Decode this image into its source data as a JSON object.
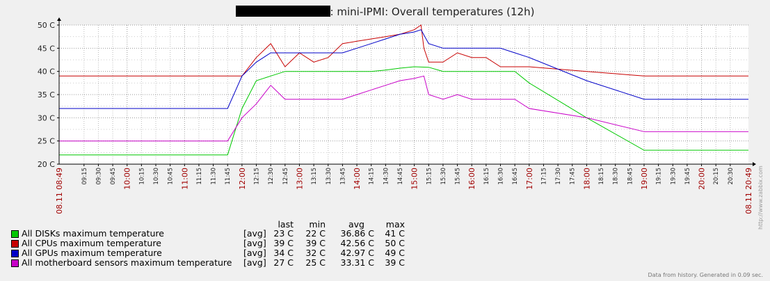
{
  "header": {
    "title_suffix": ": mini-IPMI: Overall temperatures (12h)"
  },
  "chart_data": {
    "type": "line",
    "title": ": mini-IPMI: Overall temperatures (12h)",
    "ylim": [
      20,
      50
    ],
    "yticks": [
      "20 C",
      "25 C",
      "30 C",
      "35 C",
      "40 C",
      "45 C",
      "50 C"
    ],
    "x_start_label": "08.11 08:49",
    "x_end_label": "08.11 20:49",
    "x_start_min": 529,
    "x_end_min": 1249,
    "xticks": [
      "09:15",
      "09:30",
      "09:45",
      "10:00",
      "10:15",
      "10:30",
      "10:45",
      "11:00",
      "11:15",
      "11:30",
      "11:45",
      "12:00",
      "12:15",
      "12:30",
      "12:45",
      "13:00",
      "13:15",
      "13:30",
      "13:45",
      "14:00",
      "14:15",
      "14:30",
      "14:45",
      "15:00",
      "15:15",
      "15:30",
      "15:45",
      "16:00",
      "16:15",
      "16:30",
      "16:45",
      "17:00",
      "17:15",
      "17:30",
      "17:45",
      "18:00",
      "18:15",
      "18:30",
      "18:45",
      "19:00",
      "19:15",
      "19:30",
      "19:45",
      "20:00",
      "20:15",
      "20:30"
    ],
    "major_ticks": [
      "10:00",
      "11:00",
      "12:00",
      "13:00",
      "14:00",
      "15:00",
      "16:00",
      "17:00",
      "18:00",
      "19:00",
      "20:00"
    ],
    "grid": true,
    "series": [
      {
        "name": "All DISKs maximum temperature",
        "color": "#00c800",
        "x": [
          "08:49",
          "11:45",
          "12:00",
          "12:15",
          "12:30",
          "12:45",
          "13:00",
          "13:15",
          "13:30",
          "13:45",
          "14:00",
          "14:15",
          "14:30",
          "14:45",
          "15:00",
          "15:15",
          "15:30",
          "15:45",
          "16:00",
          "16:15",
          "16:30",
          "16:45",
          "17:00",
          "18:00",
          "19:00",
          "19:15",
          "20:49"
        ],
        "y": [
          22,
          22,
          32,
          38,
          39,
          40,
          40,
          40,
          40,
          40,
          40,
          40,
          40.3,
          40.7,
          41,
          40.9,
          40,
          40,
          40,
          40,
          40,
          40,
          37.5,
          30,
          23,
          23,
          23
        ]
      },
      {
        "name": "All CPUs maximum temperature",
        "color": "#c80000",
        "x": [
          "08:49",
          "12:00",
          "12:15",
          "12:30",
          "12:45",
          "13:00",
          "13:15",
          "13:30",
          "13:45",
          "14:00",
          "14:15",
          "14:30",
          "14:45",
          "15:00",
          "15:07",
          "15:10",
          "15:15",
          "15:30",
          "15:45",
          "16:00",
          "16:15",
          "16:30",
          "16:45",
          "17:00",
          "18:00",
          "19:00",
          "19:15",
          "20:49"
        ],
        "y": [
          39,
          39,
          43,
          46,
          41,
          44,
          42,
          43,
          46,
          46.5,
          47,
          47.5,
          48,
          49,
          50,
          45,
          42,
          42,
          44,
          43,
          43,
          41,
          41,
          41,
          40,
          39,
          39,
          39
        ]
      },
      {
        "name": "All GPUs maximum temperature",
        "color": "#0000c8",
        "x": [
          "08:49",
          "11:45",
          "12:00",
          "12:15",
          "12:30",
          "12:45",
          "13:00",
          "13:15",
          "13:30",
          "13:45",
          "14:00",
          "14:15",
          "14:30",
          "14:45",
          "15:00",
          "15:07",
          "15:15",
          "15:30",
          "15:45",
          "16:00",
          "16:15",
          "16:30",
          "16:45",
          "17:00",
          "18:00",
          "19:00",
          "19:15",
          "20:49"
        ],
        "y": [
          32,
          32,
          39,
          42,
          44,
          44,
          44,
          44,
          44,
          44,
          45,
          46,
          47,
          48,
          48.5,
          49,
          46,
          45,
          45,
          45,
          45,
          45,
          44,
          43,
          38,
          34,
          34,
          34
        ]
      },
      {
        "name": "All motherboard sensors maximum temperature",
        "color": "#c800c8",
        "x": [
          "08:49",
          "11:45",
          "12:00",
          "12:15",
          "12:30",
          "12:45",
          "13:00",
          "13:15",
          "13:30",
          "13:45",
          "14:00",
          "14:15",
          "14:30",
          "14:45",
          "15:00",
          "15:10",
          "15:15",
          "15:30",
          "15:45",
          "16:00",
          "16:15",
          "16:30",
          "16:45",
          "17:00",
          "18:00",
          "19:00",
          "19:15",
          "20:49"
        ],
        "y": [
          25,
          25,
          30,
          33,
          37,
          34,
          34,
          34,
          34,
          34,
          35,
          36,
          37,
          38,
          38.5,
          39,
          35,
          34,
          35,
          34,
          34,
          34,
          34,
          32,
          30,
          27,
          27,
          27
        ]
      }
    ]
  },
  "legend": {
    "headers": {
      "last": "last",
      "min": "min",
      "avg": "avg",
      "max": "max"
    },
    "rows": [
      {
        "name": "All DISKs maximum temperature",
        "color": "#00c800",
        "func": "[avg]",
        "last": "23 C",
        "min": "22 C",
        "avg": "36.86 C",
        "max": "41 C"
      },
      {
        "name": "All CPUs maximum temperature",
        "color": "#c80000",
        "func": "[avg]",
        "last": "39 C",
        "min": "39 C",
        "avg": "42.56 C",
        "max": "50 C"
      },
      {
        "name": "All GPUs maximum temperature",
        "color": "#0000c8",
        "func": "[avg]",
        "last": "34 C",
        "min": "32 C",
        "avg": "42.97 C",
        "max": "49 C"
      },
      {
        "name": "All motherboard sensors maximum temperature",
        "color": "#c800c8",
        "func": "[avg]",
        "last": "27 C",
        "min": "25 C",
        "avg": "33.31 C",
        "max": "39 C"
      }
    ]
  },
  "footer": {
    "text": "Data from history. Generated in 0.09 sec."
  },
  "watermark": "http://www.zabbix.com"
}
